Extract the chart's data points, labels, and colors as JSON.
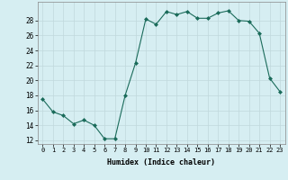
{
  "x": [
    0,
    1,
    2,
    3,
    4,
    5,
    6,
    7,
    8,
    9,
    10,
    11,
    12,
    13,
    14,
    15,
    16,
    17,
    18,
    19,
    20,
    21,
    22,
    23
  ],
  "y": [
    17.5,
    15.8,
    15.3,
    14.2,
    14.7,
    14.0,
    12.2,
    12.2,
    18.0,
    22.3,
    28.2,
    27.5,
    29.2,
    28.8,
    29.2,
    28.3,
    28.3,
    29.0,
    29.3,
    28.0,
    27.9,
    26.3,
    20.3,
    18.5
  ],
  "xlabel": "Humidex (Indice chaleur)",
  "xlim": [
    -0.5,
    23.5
  ],
  "ylim": [
    11.5,
    30.5
  ],
  "yticks": [
    12,
    14,
    16,
    18,
    20,
    22,
    24,
    26,
    28
  ],
  "xtick_labels": [
    "0",
    "1",
    "2",
    "3",
    "4",
    "5",
    "6",
    "7",
    "8",
    "9",
    "10",
    "11",
    "12",
    "13",
    "14",
    "15",
    "16",
    "17",
    "18",
    "19",
    "20",
    "21",
    "22",
    "23"
  ],
  "bg_color": "#d6eef2",
  "grid_color": "#c0d8dc",
  "line_color": "#1a6b5a",
  "marker_color": "#1a6b5a"
}
